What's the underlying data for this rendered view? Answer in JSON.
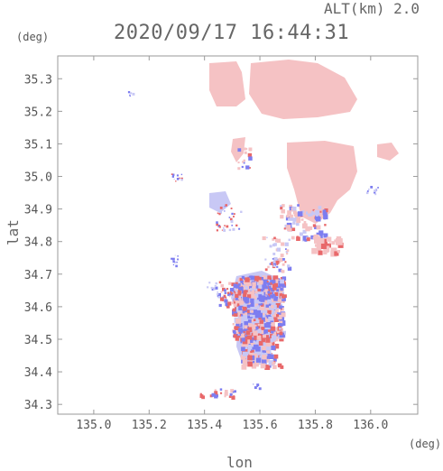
{
  "header": {
    "altitude": "ALT(km) 2.0",
    "timestamp": "2020/09/17 16:44:31"
  },
  "axes": {
    "lat_unit": "(deg)",
    "lon_unit": "(deg)",
    "lat_label": "lat",
    "lon_label": "lon",
    "lat_ticks": [
      "35.3",
      "35.2",
      "35.1",
      "35.0",
      "34.9",
      "34.8",
      "34.7",
      "34.6",
      "34.5",
      "34.4",
      "34.3"
    ],
    "lon_ticks": [
      "135.0",
      "135.2",
      "135.4",
      "135.6",
      "135.8",
      "136.0"
    ]
  },
  "map_extent": {
    "lon": [
      134.87,
      136.17
    ],
    "lat": [
      34.27,
      35.37
    ]
  },
  "colors": {
    "frame": "#9a9a9a",
    "pink": "#f5c2c4",
    "red": "#e8686a",
    "blue": "#7d7df0",
    "lightblue": "#c8c8f5"
  }
}
